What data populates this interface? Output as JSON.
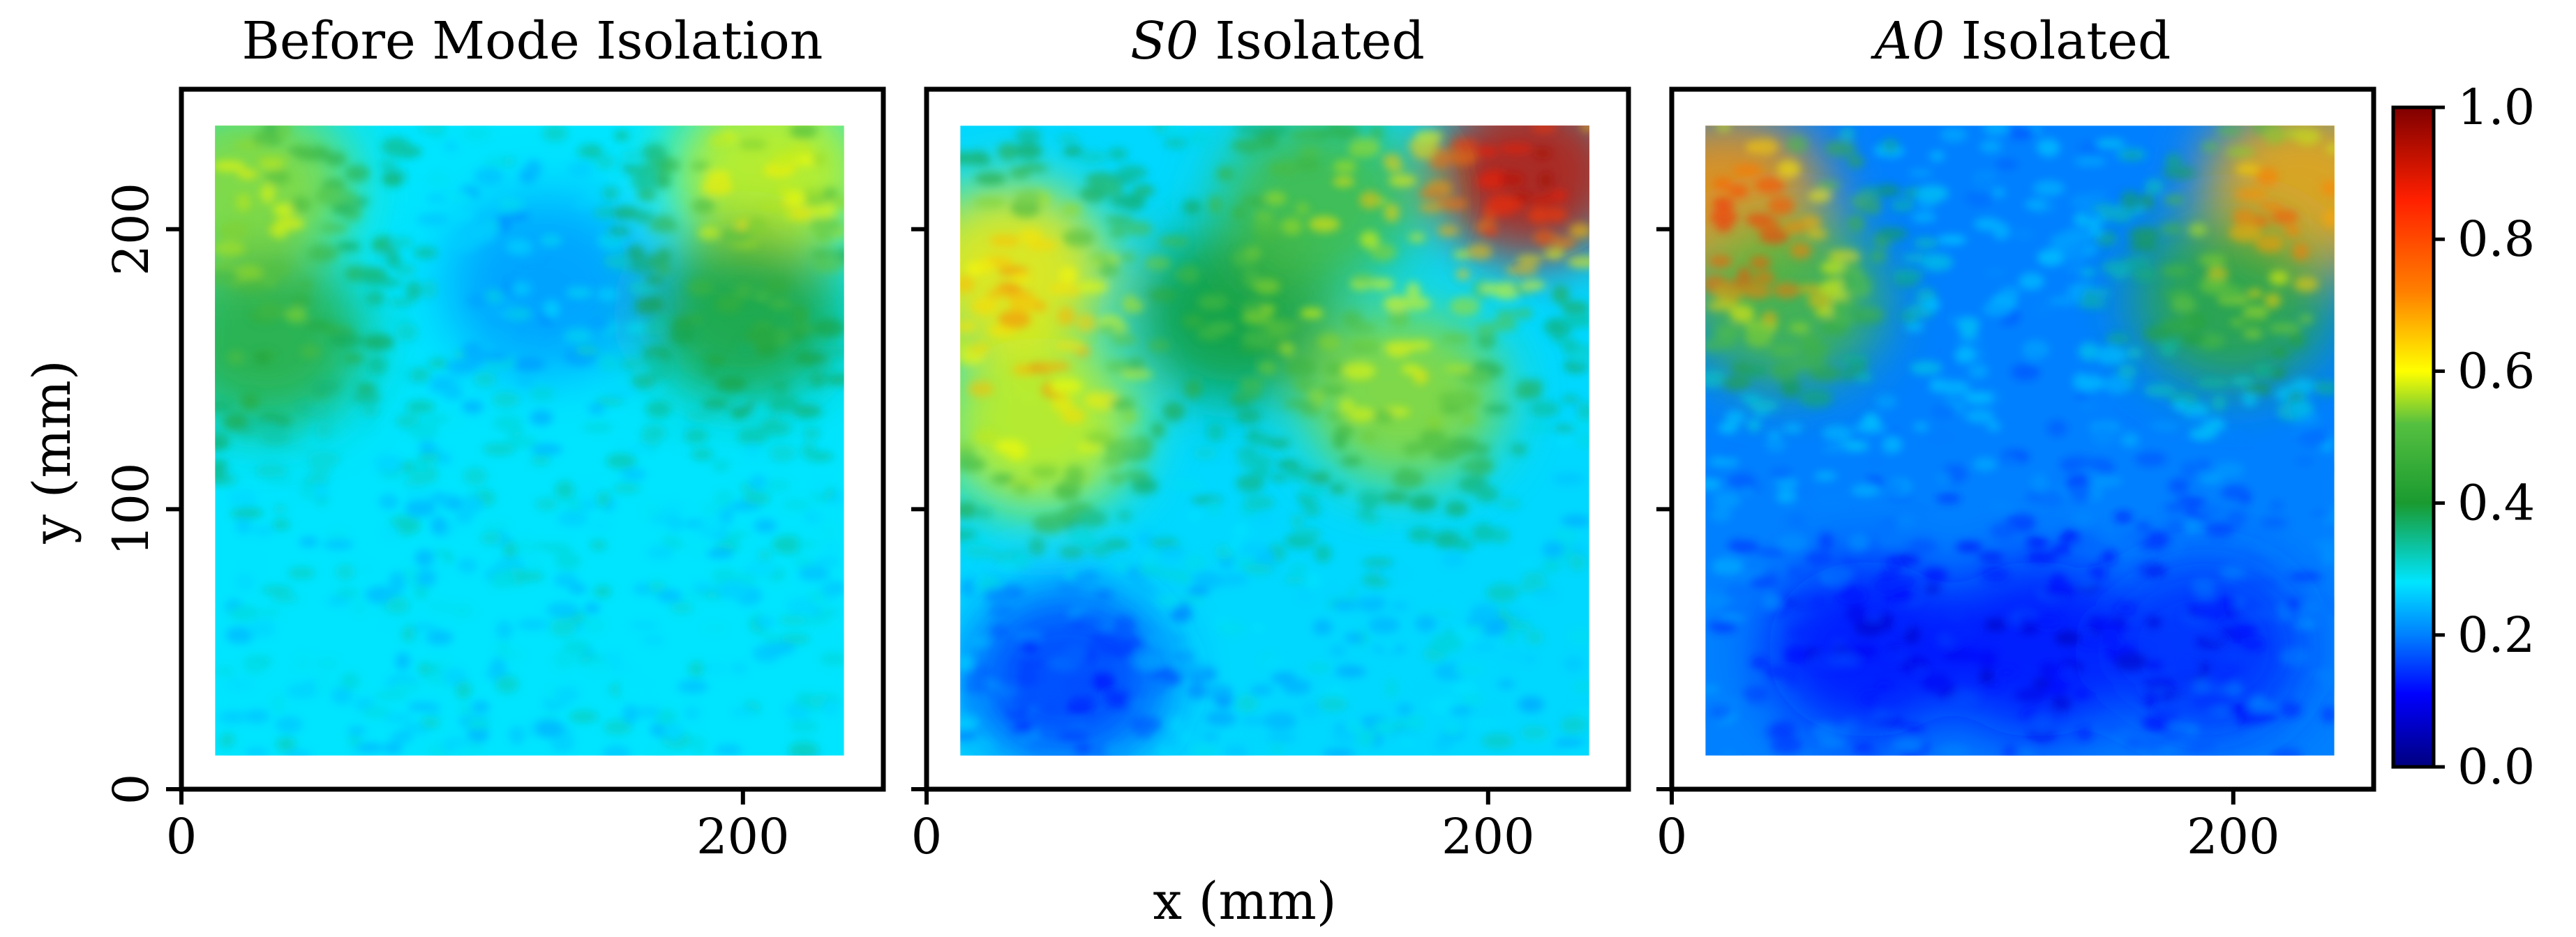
{
  "chart_data": {
    "type": "heatmap",
    "title": "",
    "xlabel": "x (mm)",
    "ylabel": "y (mm)",
    "colormap": "jet",
    "shared_axes": {
      "xlim": [
        0,
        250
      ],
      "ylim": [
        0,
        250
      ],
      "x_ticks": [
        0,
        200
      ],
      "y_ticks": [
        0,
        100,
        200
      ],
      "data_extent_x": [
        12,
        236
      ],
      "data_extent_y": [
        12,
        237
      ]
    },
    "colorbar": {
      "range": [
        0.0,
        1.0
      ],
      "ticks": [
        "0.0",
        "0.2",
        "0.4",
        "0.6",
        "0.8",
        "1.0"
      ],
      "tick_values": [
        0.0,
        0.2,
        0.4,
        0.6,
        0.8,
        1.0
      ]
    },
    "panels": [
      {
        "title_em": "",
        "title_rest": "Before Mode Isolation",
        "description": "Mostly uniform low amplitude (~0.25–0.35) with stronger ripples near the upper-left and upper-right corners",
        "base_level": 0.28,
        "hotspots": [
          {
            "x": 25,
            "y": 215,
            "value": 0.55
          },
          {
            "x": 210,
            "y": 220,
            "value": 0.58
          },
          {
            "x": 30,
            "y": 160,
            "value": 0.45
          },
          {
            "x": 200,
            "y": 170,
            "value": 0.42
          },
          {
            "x": 130,
            "y": 180,
            "value": 0.22
          }
        ]
      },
      {
        "title_em": "S0",
        "title_rest": " Isolated",
        "description": "Higher amplitude across upper region (~0.4–0.6), maximum ~0.9 in the upper-right corner, lower values (~0.2) toward the bottom",
        "base_level": 0.27,
        "hotspots": [
          {
            "x": 215,
            "y": 220,
            "value": 0.92
          },
          {
            "x": 30,
            "y": 185,
            "value": 0.62
          },
          {
            "x": 110,
            "y": 170,
            "value": 0.4
          },
          {
            "x": 170,
            "y": 140,
            "value": 0.55
          },
          {
            "x": 40,
            "y": 130,
            "value": 0.58
          },
          {
            "x": 50,
            "y": 40,
            "value": 0.15
          },
          {
            "x": 140,
            "y": 210,
            "value": 0.5
          }
        ]
      },
      {
        "title_em": "A0",
        "title_rest": " Isolated",
        "description": "Low amplitude (~0.15–0.3) with V-shaped beam pattern; elevated values (~0.5–0.7) along the upper-left and upper-right edges",
        "base_level": 0.2,
        "hotspots": [
          {
            "x": 20,
            "y": 210,
            "value": 0.7
          },
          {
            "x": 225,
            "y": 215,
            "value": 0.68
          },
          {
            "x": 40,
            "y": 175,
            "value": 0.5
          },
          {
            "x": 200,
            "y": 175,
            "value": 0.45
          },
          {
            "x": 70,
            "y": 50,
            "value": 0.12
          },
          {
            "x": 130,
            "y": 50,
            "value": 0.12
          },
          {
            "x": 190,
            "y": 50,
            "value": 0.14
          }
        ]
      }
    ]
  }
}
